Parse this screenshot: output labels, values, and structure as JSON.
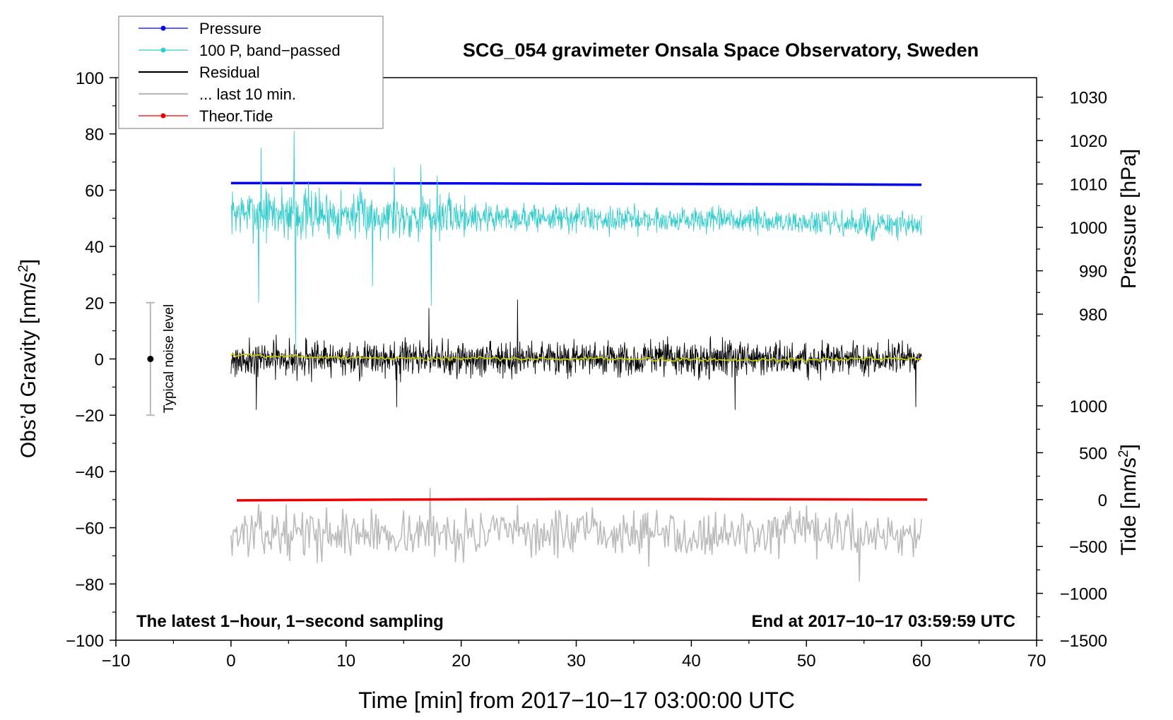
{
  "chart_data": {
    "type": "line",
    "title": "SCG_054 gravimeter Onsala Space Observatory, Sweden",
    "xlabel": "Time [min] from 2017−10−17 03:00:00 UTC",
    "ylabel": "Obs’d Gravity [nm/s",
    "ylabel_sup": "2",
    "ylabel_close": "]",
    "y2label": "Pressure [hPa]",
    "y3label": "Tide [nm/s",
    "y3label_sup": "2",
    "y3label_close": "]",
    "xlim": [
      -10,
      70
    ],
    "ylim": [
      -100,
      100
    ],
    "x_ticks": [
      -10,
      0,
      10,
      20,
      30,
      40,
      50,
      60,
      70
    ],
    "x_tick_labels": [
      "−10",
      "0",
      "10",
      "20",
      "30",
      "40",
      "50",
      "60",
      "70"
    ],
    "y_ticks": [
      -100,
      -80,
      -60,
      -40,
      -20,
      0,
      20,
      40,
      60,
      80,
      100
    ],
    "y_tick_labels": [
      "−100",
      "−80",
      "−60",
      "−40",
      "−20",
      "0",
      "20",
      "40",
      "60",
      "80",
      "100"
    ],
    "pressure_axis": {
      "ticks": [
        980,
        990,
        1000,
        1010,
        1020,
        1030
      ],
      "tick_labels": [
        "980",
        "990",
        "1000",
        "1010",
        "1020",
        "1030"
      ],
      "gravity_at_1010": 62.2,
      "gravity_per_hpa": 1.543
    },
    "tide_axis": {
      "ticks": [
        -1500,
        -1000,
        -500,
        0,
        500,
        1000
      ],
      "tick_labels": [
        "−1500",
        "−1000",
        "−500",
        "0",
        "500",
        "1000"
      ],
      "gravity_at_0": -50,
      "gravity_per_unit": 0.03333
    },
    "noise_bar": {
      "x": -7,
      "y_low": -20,
      "y_high": 20,
      "y_center": 0,
      "label": "Typical noise level"
    },
    "annotations": {
      "bottom_left": "The latest 1−hour, 1−second sampling",
      "bottom_right": "End at 2017−10−17 03:59:59 UTC"
    },
    "legend": {
      "position": "top-left",
      "entries": [
        {
          "label": "Pressure",
          "color": "#0000ee",
          "marker": true
        },
        {
          "label": "100 P, band−passed",
          "color": "#33cccc",
          "marker": true
        },
        {
          "label": "Residual",
          "color": "#000000",
          "marker": false
        },
        {
          "label": "... last 10 min.",
          "color": "#bbbbbb",
          "marker": false
        },
        {
          "label": "Theor.Tide",
          "color": "#ee0000",
          "marker": true
        }
      ]
    },
    "series": [
      {
        "name": "Pressure",
        "kind": "trend",
        "color": "#0000ee",
        "width": 3.5,
        "x": [
          0,
          10,
          20,
          30,
          40,
          50,
          60
        ],
        "values": [
          62.5,
          62.5,
          62.4,
          62.3,
          62.2,
          62.1,
          61.9
        ]
      },
      {
        "name": "100 P, band−passed",
        "kind": "noise",
        "color": "#33cccc",
        "width": 0.9,
        "x_start": 0,
        "x_end": 60,
        "samples": 1400,
        "seed": 7,
        "center_x": [
          0,
          15,
          30,
          45,
          60
        ],
        "center": [
          52,
          51,
          50,
          49,
          47
        ],
        "amp_x": [
          0,
          5,
          10,
          17,
          25,
          40,
          60
        ],
        "amp": [
          6,
          8,
          6.5,
          6,
          4,
          3.5,
          4
        ],
        "spikes": [
          {
            "x": 2.4,
            "y": 20
          },
          {
            "x": 2.6,
            "y": 75
          },
          {
            "x": 5.5,
            "y": 81
          },
          {
            "x": 5.6,
            "y": 2
          },
          {
            "x": 12.3,
            "y": 26
          },
          {
            "x": 14.2,
            "y": 68
          },
          {
            "x": 16.5,
            "y": 69
          },
          {
            "x": 17.4,
            "y": 19
          },
          {
            "x": 17.9,
            "y": 65
          }
        ]
      },
      {
        "name": "Residual",
        "kind": "noise",
        "color": "#000000",
        "width": 0.9,
        "x_start": 0,
        "x_end": 60,
        "samples": 1800,
        "seed": 21,
        "center_x": [
          0,
          60
        ],
        "center": [
          0,
          0
        ],
        "amp_x": [
          0,
          60
        ],
        "amp": [
          4.8,
          4.8
        ],
        "spikes": [
          {
            "x": 2.2,
            "y": -18
          },
          {
            "x": 17.2,
            "y": 18
          },
          {
            "x": 24.9,
            "y": 21
          },
          {
            "x": 14.4,
            "y": -17
          },
          {
            "x": 43.8,
            "y": -18
          },
          {
            "x": 59.5,
            "y": -17
          }
        ]
      },
      {
        "name": "Residual smoothed",
        "kind": "noise",
        "color": "#c8c800",
        "width": 1.8,
        "x_start": 0,
        "x_end": 60,
        "samples": 300,
        "seed": 5,
        "center_x": [
          0,
          5,
          15,
          30,
          45,
          60
        ],
        "center": [
          1.5,
          1,
          0.2,
          0,
          -0.3,
          0
        ],
        "amp_x": [
          0,
          60
        ],
        "amp": [
          0.6,
          0.6
        ],
        "spikes": []
      },
      {
        "name": "... last 10 min.",
        "kind": "noise",
        "color": "#bbbbbb",
        "width": 1.6,
        "x_start": 0,
        "x_end": 60,
        "samples": 600,
        "seed": 13,
        "center_x": [
          0,
          60
        ],
        "center": [
          -62,
          -62
        ],
        "amp_x": [
          0,
          60
        ],
        "amp": [
          6.5,
          6.5
        ],
        "spikes": [
          {
            "x": 17.3,
            "y": -46
          },
          {
            "x": 54.6,
            "y": -79
          }
        ]
      },
      {
        "name": "Theor.Tide",
        "kind": "trend",
        "color": "#ee0000",
        "width": 3.5,
        "x": [
          0.5,
          10,
          20,
          30,
          40,
          50,
          60.5
        ],
        "values": [
          -50.3,
          -50.1,
          -49.9,
          -49.8,
          -49.8,
          -49.9,
          -50.0
        ]
      }
    ]
  }
}
